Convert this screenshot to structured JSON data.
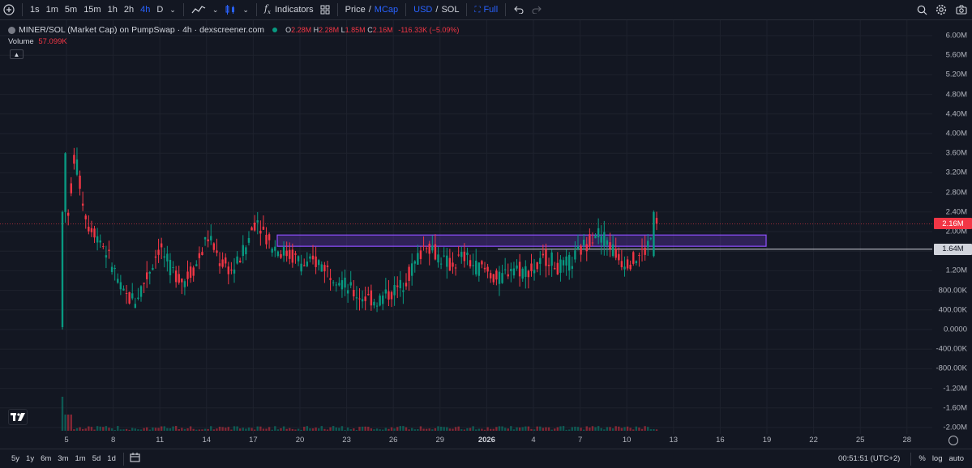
{
  "toolbar": {
    "timeframes": [
      "1s",
      "1m",
      "5m",
      "15m",
      "1h",
      "2h",
      "4h",
      "D"
    ],
    "active_timeframe": "4h",
    "indicators_label": "Indicators",
    "price_label": "Price",
    "slash1": "/",
    "mcap_label": "MCap",
    "usd_label": "USD",
    "slash2": "/",
    "sol_label": "SOL",
    "full_label": "Full"
  },
  "legend": {
    "title": "MINER/SOL (Market Cap) on PumpSwap · 4h · dexscreener.com",
    "o_label": "O",
    "o_value": "2.28M",
    "h_label": "H",
    "h_value": "2.28M",
    "l_label": "L",
    "l_value": "1.85M",
    "c_label": "C",
    "c_value": "2.16M",
    "change": "-116.33K (−5.09%)",
    "volume_label": "Volume",
    "volume_value": "57.099K"
  },
  "price_axis": [
    "6.00M",
    "5.60M",
    "5.20M",
    "4.80M",
    "4.40M",
    "4.00M",
    "3.60M",
    "3.20M",
    "2.80M",
    "2.40M",
    "2.00M",
    "1.60M",
    "1.20M",
    "800.00K",
    "400.00K",
    "0.0000",
    "-400.00K",
    "-800.00K",
    "-1.20M",
    "-1.60M",
    "-2.00M"
  ],
  "current_price_badge": "2.16M",
  "line_price_badge": "1.64M",
  "time_axis": [
    "5",
    "8",
    "11",
    "14",
    "17",
    "20",
    "23",
    "26",
    "29",
    "2026",
    "4",
    "7",
    "10",
    "13",
    "16",
    "19",
    "22",
    "25",
    "28"
  ],
  "bottom": {
    "ranges": [
      "5y",
      "1y",
      "6m",
      "3m",
      "1m",
      "5d",
      "1d"
    ],
    "clock": "00:51:51 (UTC+2)",
    "percent_label": "%",
    "log_label": "log",
    "auto_label": "auto"
  },
  "colors": {
    "up": "#089981",
    "down": "#f23645",
    "zone": "#7b3fe4",
    "bg": "#131722"
  },
  "chart_data": {
    "type": "candlestick",
    "unit": "market cap (SOL-quoted, displayed in USD)",
    "ylim": [
      -2000000,
      6000000
    ],
    "candles_close_approx": [
      [
        0.05,
        1.2
      ],
      [
        2.4,
        3.6
      ],
      [
        3.9,
        2.2
      ],
      [
        2.1,
        1.9
      ],
      [
        1.9,
        1.4
      ],
      [
        1.3,
        0.7
      ],
      [
        0.7,
        0.6
      ],
      [
        0.6,
        1.1
      ],
      [
        1.1,
        1.7
      ],
      [
        1.7,
        1.2
      ],
      [
        1.2,
        1.0
      ],
      [
        1.0,
        1.3
      ],
      [
        1.3,
        1.9
      ],
      [
        1.9,
        1.4
      ],
      [
        1.4,
        1.2
      ],
      [
        1.2,
        1.6
      ],
      [
        1.6,
        2.3
      ],
      [
        2.3,
        1.8
      ],
      [
        1.8,
        1.6
      ],
      [
        1.6,
        1.5
      ],
      [
        1.5,
        1.3
      ],
      [
        1.3,
        1.4
      ],
      [
        1.4,
        1.2
      ],
      [
        1.2,
        1.0
      ],
      [
        1.0,
        0.75
      ],
      [
        0.75,
        0.65
      ],
      [
        0.65,
        0.6
      ],
      [
        0.6,
        0.75
      ],
      [
        0.75,
        0.9
      ],
      [
        0.9,
        1.3
      ],
      [
        1.3,
        1.8
      ],
      [
        1.8,
        1.5
      ],
      [
        1.5,
        1.3
      ],
      [
        1.3,
        1.5
      ],
      [
        1.5,
        1.3
      ],
      [
        1.3,
        1.2
      ],
      [
        1.2,
        1.0
      ],
      [
        1.0,
        1.3
      ],
      [
        1.3,
        1.2
      ],
      [
        1.2,
        1.25
      ],
      [
        1.25,
        1.5
      ],
      [
        1.5,
        1.25
      ],
      [
        1.25,
        1.4
      ],
      [
        1.4,
        1.7
      ],
      [
        1.7,
        2.0
      ],
      [
        2.0,
        1.8
      ],
      [
        1.8,
        1.4
      ],
      [
        1.4,
        1.4
      ],
      [
        1.4,
        1.6
      ],
      [
        1.6,
        2.1
      ]
    ],
    "horizontal_line": 1.64,
    "zone": {
      "low": 1.7,
      "high": 1.93
    }
  }
}
